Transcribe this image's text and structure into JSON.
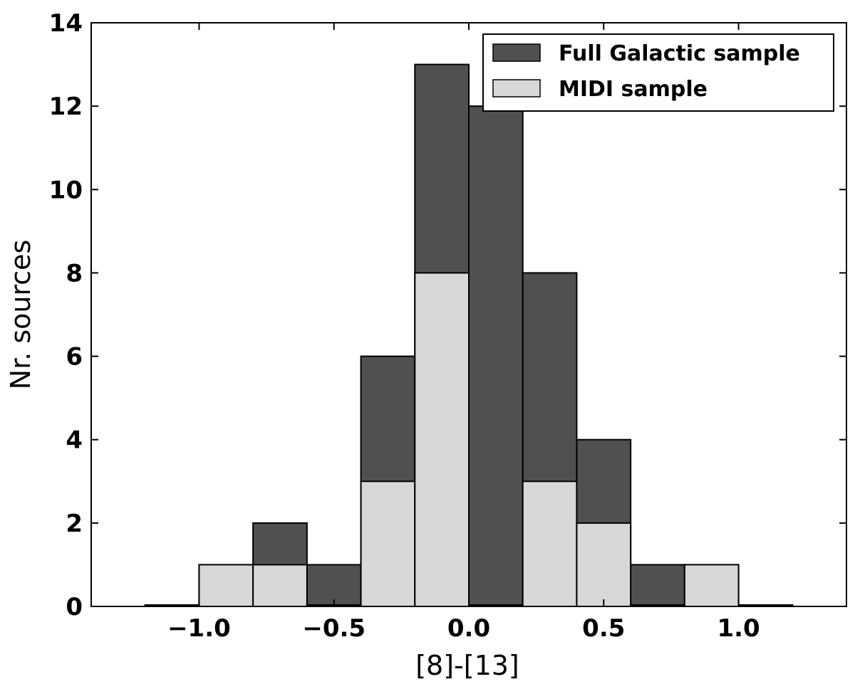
{
  "chart_data": {
    "type": "bar",
    "subtype": "histogram-overlay",
    "title": "",
    "xlabel": "[8]-[13]",
    "ylabel": "Nr. sources",
    "xlim": [
      -1.4,
      1.4
    ],
    "ylim": [
      0,
      14
    ],
    "xticks": [
      -1.0,
      -0.5,
      0.0,
      0.5,
      1.0
    ],
    "xtick_labels": [
      "−1.0",
      "−0.5",
      "0.0",
      "0.5",
      "1.0"
    ],
    "yticks": [
      0,
      2,
      4,
      6,
      8,
      10,
      12,
      14
    ],
    "ytick_labels": [
      "0",
      "2",
      "4",
      "6",
      "8",
      "10",
      "12",
      "14"
    ],
    "bin_edges": [
      -1.2,
      -1.0,
      -0.8,
      -0.6,
      -0.4,
      -0.2,
      0.0,
      0.2,
      0.4,
      0.6,
      0.8,
      1.0,
      1.2
    ],
    "grid": false,
    "legend_position": "top-right",
    "series": [
      {
        "name": "Full Galactic sample",
        "color": "#505050",
        "values": [
          0,
          1,
          2,
          1,
          6,
          13,
          12,
          8,
          4,
          1,
          1,
          0
        ]
      },
      {
        "name": "MIDI sample",
        "color": "#d8d8d8",
        "values": [
          0,
          1,
          1,
          0,
          3,
          8,
          0,
          3,
          2,
          0,
          1,
          0
        ]
      }
    ]
  }
}
